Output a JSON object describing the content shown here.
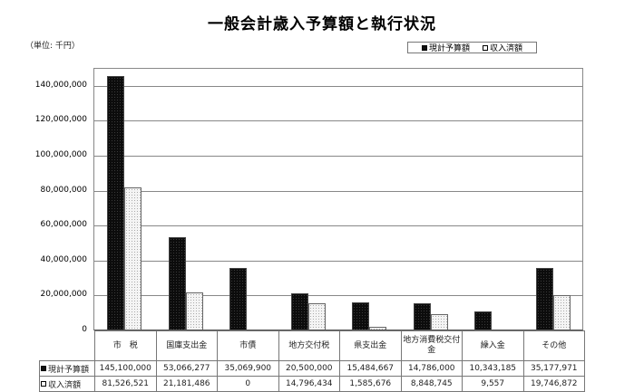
{
  "title": "一般会計歳入予算額と執行状況",
  "unit_label": "（単位: 千円）",
  "legend": [
    {
      "label": "現計予算額",
      "swatch": "dark"
    },
    {
      "label": "収入済額",
      "swatch": "light"
    }
  ],
  "y_ticks": [
    "0",
    "20,000,000",
    "40,000,000",
    "60,000,000",
    "80,000,000",
    "100,000,000",
    "120,000,000",
    "140,000,000"
  ],
  "table": {
    "categories": [
      "市　税",
      "国庫支出金",
      "市債",
      "地方交付税",
      "県支出金",
      "地方消費税交付金",
      "繰入金",
      "その他"
    ],
    "rows": [
      {
        "label": "現計予算額",
        "values": [
          "145,100,000",
          "53,066,277",
          "35,069,900",
          "20,500,000",
          "15,484,667",
          "14,786,000",
          "10,343,185",
          "35,177,971"
        ]
      },
      {
        "label": "収入済額",
        "values": [
          "81,526,521",
          "21,181,486",
          "0",
          "14,796,434",
          "1,585,676",
          "8,848,745",
          "9,557",
          "19,746,872"
        ]
      }
    ]
  },
  "colors": {
    "budget": "#111111",
    "received": "#f4f4f4",
    "grid": "#888888"
  },
  "chart_data": {
    "type": "bar",
    "title": "一般会計歳入予算額と執行状況",
    "subtitle": "（単位: 千円）",
    "xlabel": "",
    "ylabel": "千円",
    "categories": [
      "市 税",
      "国庫支出金",
      "市債",
      "地方交付税",
      "県支出金",
      "地方消費税交付金",
      "繰入金",
      "その他"
    ],
    "series": [
      {
        "name": "現計予算額",
        "values": [
          145100000,
          53066277,
          35069900,
          20500000,
          15484667,
          14786000,
          10343185,
          35177971
        ]
      },
      {
        "name": "収入済額",
        "values": [
          81526521,
          21181486,
          0,
          14796434,
          1585676,
          8848745,
          9557,
          19746872
        ]
      }
    ],
    "ylim": [
      0,
      150000000
    ],
    "y_tick_step": 20000000,
    "grid": true,
    "legend_position": "top-right",
    "data_table": true
  }
}
